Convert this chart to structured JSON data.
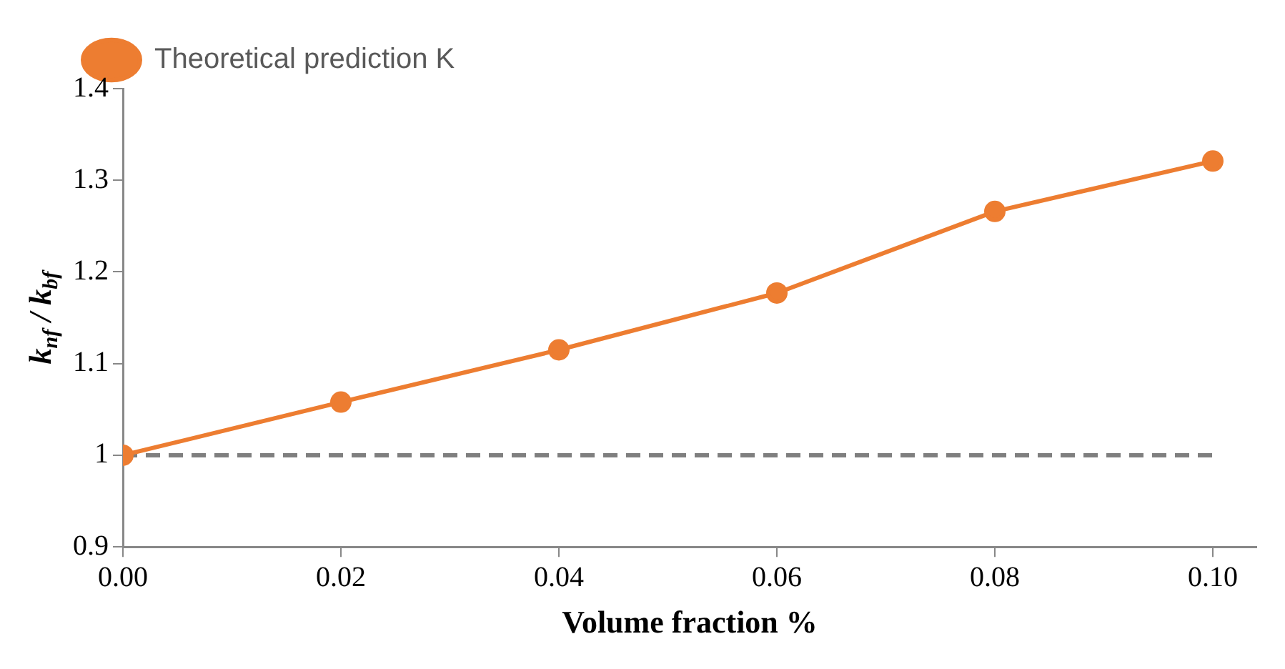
{
  "chart_data": {
    "type": "line",
    "xlabel": "Volume fraction %",
    "ylabel": "k$_{nf}$ / k$_{bf}$",
    "x": [
      0,
      0.02,
      0.04,
      0.06,
      0.08,
      0.1
    ],
    "series": [
      {
        "name": "Theoretical prediction K",
        "color": "#ed7d31",
        "values": [
          1,
          1.058,
          1.115,
          1.177,
          1.266,
          1.321
        ],
        "marker": "circle",
        "line_style": "solid"
      },
      {
        "color": "#7f7f7f",
        "x": [
          0,
          0.1
        ],
        "values": [
          1,
          1
        ],
        "marker": "none",
        "line_style": "dashed"
      }
    ],
    "xlim": [
      0,
      0.104
    ],
    "xticks": [
      {
        "value": 0,
        "label": "0.00"
      },
      {
        "value": 0.02,
        "label": "0.02"
      },
      {
        "value": 0.04,
        "label": "0.04"
      },
      {
        "value": 0.06,
        "label": "0.06"
      },
      {
        "value": 0.08,
        "label": "0.08"
      },
      {
        "value": 0.1,
        "label": "0.10"
      }
    ],
    "ylim": [
      0.9,
      1.4
    ],
    "yticks": [
      0.9,
      1,
      1.1,
      1.2,
      1.3,
      1.4
    ],
    "grid": false,
    "legend": "top left"
  }
}
